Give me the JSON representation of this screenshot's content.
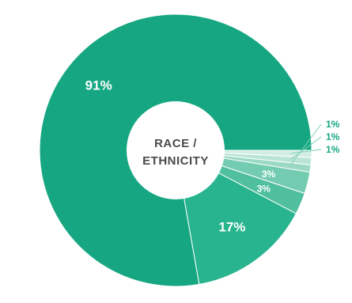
{
  "chart_data": {
    "type": "pie",
    "center_label_lines": [
      "RACE /",
      "ETHNICITY"
    ],
    "slices": [
      {
        "label": "91%",
        "value": 91,
        "color": "#16a782",
        "label_style": "inside"
      },
      {
        "label": "17%",
        "value": 17,
        "color": "#27b48e",
        "label_style": "inside"
      },
      {
        "label": "3%",
        "value": 3,
        "color": "#4fbf9d",
        "label_style": "inside"
      },
      {
        "label": "3%",
        "value": 3,
        "color": "#73ccb0",
        "label_style": "inside"
      },
      {
        "label": "1%",
        "value": 1,
        "color": "#9bd9c4",
        "label_style": "outside"
      },
      {
        "label": "1%",
        "value": 1,
        "color": "#bae5d6",
        "label_style": "outside"
      },
      {
        "label": "1%",
        "value": 1,
        "color": "#d2eee4",
        "label_style": "outside"
      }
    ],
    "outside_label_color": "#16a782",
    "leader_line_color": "#7fcfb5"
  }
}
